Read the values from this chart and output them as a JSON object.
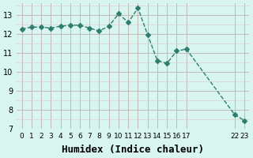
{
  "x": [
    0,
    1,
    2,
    3,
    4,
    5,
    6,
    7,
    8,
    9,
    10,
    11,
    12,
    13,
    14,
    15,
    16,
    17,
    22,
    23
  ],
  "y": [
    12.25,
    12.35,
    12.35,
    12.3,
    12.4,
    12.45,
    12.45,
    12.3,
    12.15,
    12.4,
    13.05,
    12.6,
    13.35,
    11.95,
    10.6,
    10.45,
    11.1,
    11.2,
    7.75,
    7.45
  ],
  "line_color": "#2e7d6e",
  "marker": "D",
  "marker_size": 3,
  "bg_color": "#d8f5f0",
  "grid_color_major": "#c0b0b0",
  "grid_color_minor": "#e0c8c8",
  "xlabel": "Humidex (Indice chaleur)",
  "xlabel_fontsize": 9,
  "xticks": [
    0,
    1,
    2,
    3,
    4,
    5,
    6,
    7,
    8,
    9,
    10,
    11,
    12,
    13,
    14,
    15,
    16,
    17,
    22,
    23
  ],
  "xtick_labels": [
    "0",
    "1",
    "2",
    "3",
    "4",
    "5",
    "6",
    "7",
    "8",
    "9",
    "10",
    "11",
    "12",
    "13",
    "14",
    "15",
    "16",
    "17",
    "22",
    "23"
  ],
  "ylim": [
    7,
    13.6
  ],
  "yticks": [
    7,
    8,
    9,
    10,
    11,
    12,
    13
  ],
  "xlim": [
    -0.5,
    23.5
  ]
}
